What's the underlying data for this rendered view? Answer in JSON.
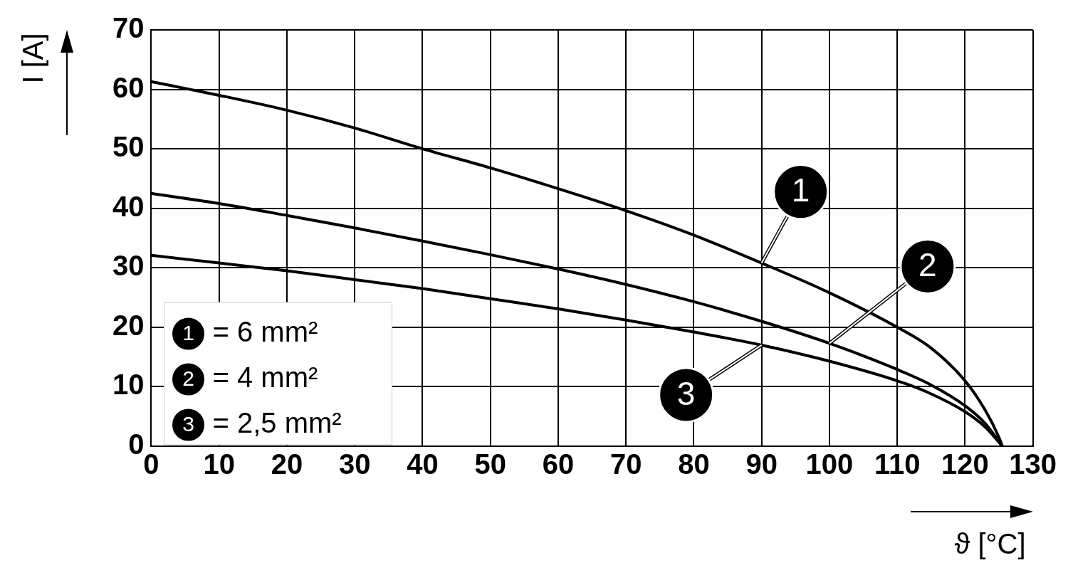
{
  "chart_data": {
    "type": "line",
    "xlabel": "ϑ [°C]",
    "ylabel": "I [A]",
    "xlim": [
      0,
      130
    ],
    "xticks": [
      0,
      10,
      20,
      30,
      40,
      50,
      60,
      70,
      80,
      90,
      100,
      110,
      120,
      130
    ],
    "ylim": [
      0,
      70
    ],
    "yticks": [
      0,
      10,
      20,
      30,
      40,
      50,
      60,
      70
    ],
    "grid": true,
    "legend": "bottom left",
    "marker": "none",
    "line_style": "solid",
    "annotations": [
      "= 6 mm²",
      "= 4 mm²",
      "= 2,5 mm²"
    ],
    "series": [
      {
        "name": "1",
        "color": "#000000",
        "x": [
          0,
          10,
          20,
          30,
          40,
          50,
          60,
          70,
          80,
          90,
          100,
          110,
          115,
          120,
          123,
          125,
          125.5
        ],
        "values": [
          61.3,
          59,
          56.5,
          53.5,
          50,
          46.8,
          43.3,
          39.6,
          35.5,
          30.8,
          25.8,
          20,
          16.5,
          11,
          6,
          1.5,
          0
        ]
      },
      {
        "name": "2",
        "color": "#000000",
        "x": [
          0,
          10,
          20,
          30,
          40,
          50,
          60,
          70,
          80,
          90,
          100,
          110,
          115,
          120,
          123,
          125.5
        ],
        "values": [
          42.5,
          40.8,
          38.8,
          36.7,
          34.5,
          32.2,
          29.8,
          27.2,
          24.3,
          21,
          17.3,
          12.9,
          10.3,
          6.8,
          3.8,
          0
        ]
      },
      {
        "name": "3",
        "color": "#000000",
        "x": [
          0,
          10,
          20,
          30,
          40,
          50,
          60,
          70,
          80,
          90,
          100,
          110,
          115,
          120,
          123,
          125.5
        ],
        "values": [
          32.1,
          30.8,
          29.5,
          28,
          26.5,
          24.8,
          23.1,
          21.2,
          19.2,
          17,
          14.3,
          11,
          8.8,
          5.8,
          3.2,
          0
        ]
      }
    ]
  }
}
